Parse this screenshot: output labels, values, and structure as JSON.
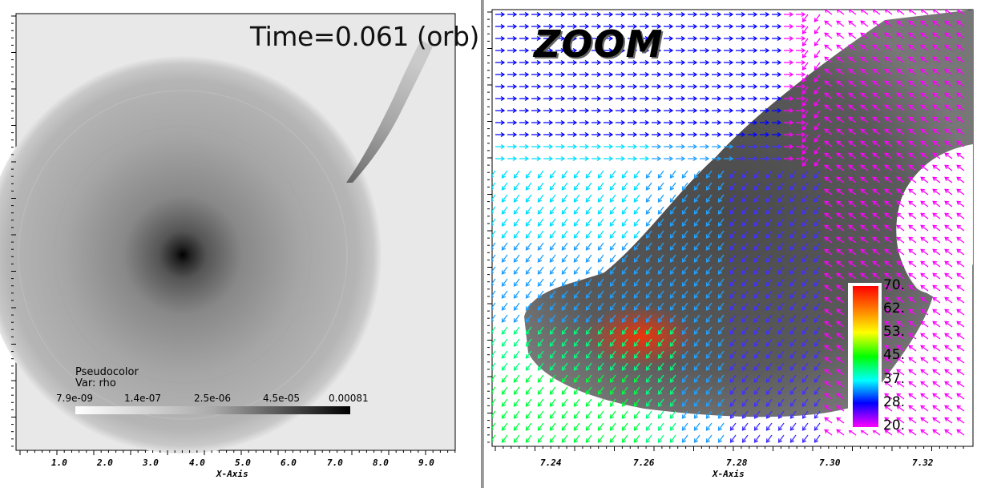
{
  "left_panel": {
    "time_label": "Time=0.061 (orb)",
    "legend": {
      "title": "Pseudocolor",
      "var": "Var: rho",
      "ticks": [
        "7.9e-09",
        "1.4e-07",
        "2.5e-06",
        "4.5e-05",
        "0.00081"
      ]
    },
    "x_axis": {
      "title": "X-Axis",
      "tick_labels": [
        "1.0",
        "2.0",
        "3.0",
        "4.0",
        "5.0",
        "6.0",
        "7.0",
        "8.0",
        "9.0"
      ]
    },
    "colors": {
      "background": "#ffffff",
      "disk_gray": "#b9b9b9",
      "core": "#000000"
    }
  },
  "right_panel": {
    "zoom_label": "ZOOM",
    "colorbar": {
      "ticks": [
        "70.",
        "62.",
        "53.",
        "45.",
        "37.",
        "28.",
        "20."
      ]
    },
    "x_axis": {
      "title": "X-Axis",
      "tick_labels": [
        "7.24",
        "7.26",
        "7.28",
        "7.30",
        "7.32"
      ]
    },
    "colors": {
      "low": "#ff00ff",
      "mid": "#00ff00",
      "high": "#ff0000",
      "blue": "#0000ff",
      "cyan": "#00ffff"
    }
  }
}
